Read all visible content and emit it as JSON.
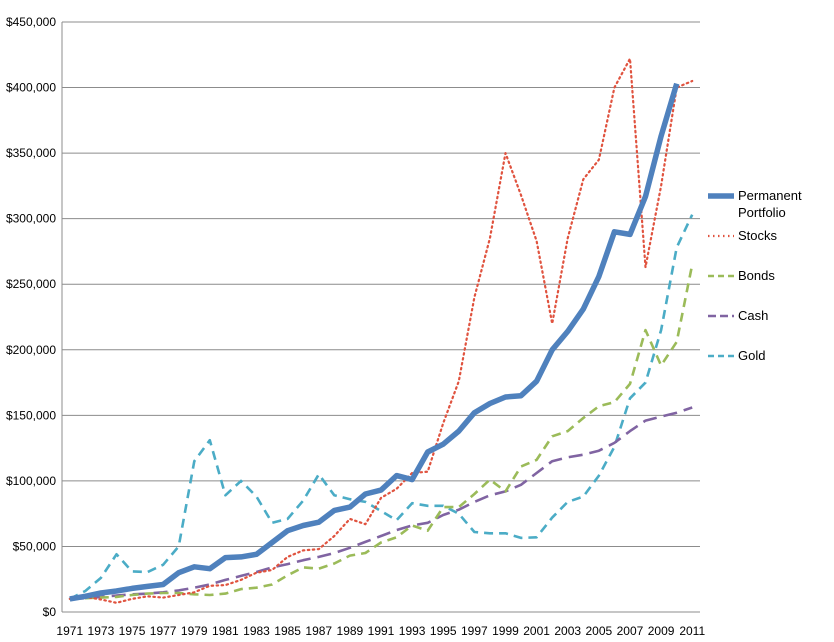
{
  "chart_data": {
    "type": "line",
    "title": "",
    "xlabel": "",
    "ylabel": "",
    "ylim": [
      0,
      450000
    ],
    "y_ticks": [
      0,
      50000,
      100000,
      150000,
      200000,
      250000,
      300000,
      350000,
      400000,
      450000
    ],
    "y_tick_labels": [
      "$0",
      "$50,000",
      "$100,000",
      "$150,000",
      "$200,000",
      "$250,000",
      "$300,000",
      "$350,000",
      "$400,000",
      "$450,000"
    ],
    "x": [
      1971,
      1972,
      1973,
      1974,
      1975,
      1976,
      1977,
      1978,
      1979,
      1980,
      1981,
      1982,
      1983,
      1984,
      1985,
      1986,
      1987,
      1988,
      1989,
      1990,
      1991,
      1992,
      1993,
      1994,
      1995,
      1996,
      1997,
      1998,
      1999,
      2000,
      2001,
      2002,
      2003,
      2004,
      2005,
      2006,
      2007,
      2008,
      2009,
      2010,
      2011
    ],
    "x_tick_labels": [
      "1971",
      "1973",
      "1975",
      "1977",
      "1979",
      "1981",
      "1983",
      "1985",
      "1987",
      "1989",
      "1991",
      "1993",
      "1995",
      "1997",
      "1999",
      "2001",
      "2003",
      "2005",
      "2007",
      "2009",
      "2011"
    ],
    "grid": true,
    "legend_position": "right",
    "series": [
      {
        "name": "Permanent Portfolio",
        "color": "#4f81bd",
        "style": "solid",
        "values": [
          10000,
          12000,
          14500,
          16000,
          18000,
          19500,
          21000,
          30000,
          34500,
          33000,
          41500,
          42000,
          44000,
          53000,
          62000,
          66000,
          68500,
          77500,
          80000,
          90000,
          93000,
          104000,
          101000,
          122000,
          128000,
          138000,
          152000,
          159000,
          164000,
          165000,
          176000,
          200000,
          214000,
          231000,
          256000,
          290000,
          288000,
          317000,
          363000,
          403000,
          null
        ]
      },
      {
        "name": "Stocks",
        "color": "#e0533f",
        "style": "dotted",
        "values": [
          10000,
          11500,
          9500,
          7000,
          10000,
          12000,
          11000,
          13000,
          15000,
          20000,
          20500,
          24500,
          30000,
          32000,
          42000,
          47000,
          48000,
          58000,
          71000,
          67000,
          87000,
          94000,
          106000,
          107000,
          144000,
          176000,
          240000,
          285000,
          350000,
          318000,
          283000,
          220000,
          285000,
          330000,
          345000,
          400000,
          422000,
          263000,
          325000,
          400000,
          405000
        ]
      },
      {
        "name": "Bonds",
        "color": "#9bbb59",
        "style": "dashed",
        "values": [
          10000,
          10500,
          11000,
          11500,
          13000,
          14000,
          14500,
          14500,
          13500,
          13000,
          14000,
          17500,
          18500,
          21000,
          28000,
          34000,
          33000,
          37000,
          43000,
          45000,
          53000,
          57000,
          66000,
          62000,
          80000,
          80000,
          90000,
          101000,
          92000,
          111000,
          116000,
          134000,
          138000,
          148000,
          157000,
          160000,
          174000,
          215000,
          188000,
          206000,
          265000
        ]
      },
      {
        "name": "Cash",
        "color": "#8064a2",
        "style": "dashed",
        "values": [
          10000,
          10500,
          11500,
          12500,
          13500,
          14000,
          15000,
          16500,
          18500,
          21000,
          24500,
          27500,
          30500,
          34000,
          36500,
          39500,
          42000,
          45000,
          49000,
          53500,
          58000,
          62500,
          66000,
          68000,
          74000,
          78000,
          84000,
          89000,
          92000,
          97000,
          106000,
          115000,
          118000,
          120000,
          123000,
          129000,
          138000,
          146000,
          149000,
          152000,
          156000
        ]
      },
      {
        "name": "Gold",
        "color": "#4bacc6",
        "style": "dashed",
        "values": [
          10000,
          16000,
          26000,
          44000,
          31000,
          30500,
          36000,
          50000,
          115000,
          131000,
          89000,
          100000,
          88000,
          68000,
          71000,
          85000,
          105000,
          89000,
          86000,
          84000,
          77000,
          70000,
          83000,
          81000,
          81000,
          75000,
          61000,
          60000,
          60000,
          56500,
          57000,
          72000,
          84000,
          88000,
          104000,
          126000,
          163000,
          175000,
          215000,
          278000,
          303000
        ]
      }
    ]
  }
}
